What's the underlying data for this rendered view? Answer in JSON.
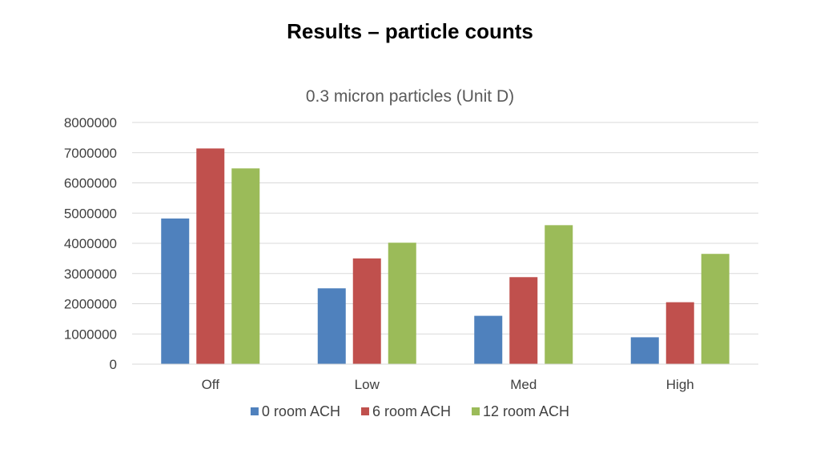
{
  "page": {
    "title": "Results – particle counts"
  },
  "chart_data": {
    "type": "bar",
    "title": "0.3 micron particles (Unit D)",
    "categories": [
      "Off",
      "Low",
      "Med",
      "High"
    ],
    "series": [
      {
        "name": "0 room ACH",
        "color": "#4F81BD",
        "values": [
          4820000,
          2510000,
          1600000,
          890000
        ]
      },
      {
        "name": "6 room ACH",
        "color": "#C0504D",
        "values": [
          7140000,
          3500000,
          2880000,
          2050000
        ]
      },
      {
        "name": "12 room ACH",
        "color": "#9BBB59",
        "values": [
          6480000,
          4020000,
          4600000,
          3650000
        ]
      }
    ],
    "ylim": [
      0,
      8000000
    ],
    "yticks": [
      0,
      1000000,
      2000000,
      3000000,
      4000000,
      5000000,
      6000000,
      7000000,
      8000000
    ],
    "grid": true,
    "legend_position": "bottom",
    "grid_color": "#D9D9D9"
  }
}
